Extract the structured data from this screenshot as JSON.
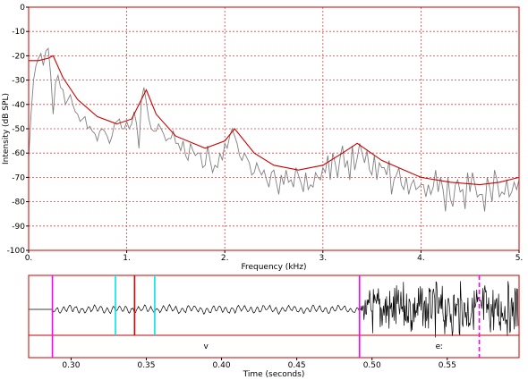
{
  "chart_data": [
    {
      "type": "line",
      "xlabel": "Frequency (kHz)",
      "ylabel": "Intensity (dB SPL)",
      "xlim": [
        0,
        5
      ],
      "ylim": [
        -100,
        0
      ],
      "x_ticks": [
        0,
        1,
        2,
        3,
        4,
        5
      ],
      "x_tick_labels": [
        "0.",
        "1.",
        "2.",
        "3.",
        "4.",
        "5."
      ],
      "y_ticks": [
        0,
        -10,
        -20,
        -30,
        -40,
        -50,
        -60,
        -70,
        -80,
        -90,
        -100
      ],
      "y_tick_labels": [
        "0",
        "-10",
        "-20",
        "-30",
        "-40",
        "-50",
        "-60",
        "-70",
        "-80",
        "-90",
        "-100"
      ],
      "grid": true,
      "series": [
        {
          "role": "LPC spectral envelope",
          "color": "#cc0000",
          "x": [
            0,
            0.1,
            0.2,
            0.25,
            0.35,
            0.5,
            0.7,
            0.9,
            1.05,
            1.15,
            1.2,
            1.3,
            1.5,
            1.8,
            2.0,
            2.1,
            2.3,
            2.5,
            2.75,
            3.0,
            3.2,
            3.35,
            3.6,
            4.0,
            4.3,
            4.6,
            4.8,
            5.0
          ],
          "y": [
            -22,
            -22,
            -21,
            -20,
            -29,
            -38,
            -45,
            -48,
            -46,
            -38,
            -34,
            -44,
            -53,
            -58,
            -55,
            -50,
            -60,
            -65,
            -67,
            -65,
            -60,
            -56,
            -63,
            -70,
            -72,
            -73,
            -72,
            -70
          ]
        },
        {
          "role": "FFT spectrum",
          "color": "#808080",
          "x": [
            0.0,
            0.025,
            0.05,
            0.075,
            0.1,
            0.125,
            0.15,
            0.175,
            0.2,
            0.225,
            0.25,
            0.275,
            0.3,
            0.325,
            0.35,
            0.375,
            0.4,
            0.425,
            0.45,
            0.475,
            0.5,
            0.525,
            0.55,
            0.575,
            0.6,
            0.625,
            0.65,
            0.675,
            0.7,
            0.725,
            0.75,
            0.775,
            0.8,
            0.825,
            0.85,
            0.875,
            0.9,
            0.925,
            0.95,
            0.975,
            1.0,
            1.025,
            1.05,
            1.075,
            1.1,
            1.125,
            1.15,
            1.175,
            1.2,
            1.225,
            1.25,
            1.275,
            1.3,
            1.325,
            1.35,
            1.375,
            1.4,
            1.425,
            1.45,
            1.475,
            1.5,
            1.525,
            1.55,
            1.575,
            1.6,
            1.625,
            1.65,
            1.675,
            1.7,
            1.725,
            1.75,
            1.775,
            1.8,
            1.825,
            1.85,
            1.875,
            1.9,
            1.925,
            1.95,
            1.975,
            2.0,
            2.025,
            2.05,
            2.075,
            2.1,
            2.125,
            2.15,
            2.175,
            2.2,
            2.225,
            2.25,
            2.275,
            2.3,
            2.325,
            2.35,
            2.375,
            2.4,
            2.425,
            2.45,
            2.475,
            2.5,
            2.525,
            2.55,
            2.575,
            2.6,
            2.625,
            2.65,
            2.675,
            2.7,
            2.725,
            2.75,
            2.775,
            2.8,
            2.825,
            2.85,
            2.875,
            2.9,
            2.925,
            2.95,
            2.975,
            3.0,
            3.025,
            3.05,
            3.075,
            3.1,
            3.125,
            3.15,
            3.175,
            3.2,
            3.225,
            3.25,
            3.275,
            3.3,
            3.325,
            3.35,
            3.375,
            3.4,
            3.425,
            3.45,
            3.475,
            3.5,
            3.525,
            3.55,
            3.575,
            3.6,
            3.625,
            3.65,
            3.675,
            3.7,
            3.725,
            3.75,
            3.775,
            3.8,
            3.825,
            3.85,
            3.875,
            3.9,
            3.925,
            3.95,
            3.975,
            4.0,
            4.025,
            4.05,
            4.075,
            4.1,
            4.125,
            4.15,
            4.175,
            4.2,
            4.225,
            4.25,
            4.275,
            4.3,
            4.325,
            4.35,
            4.375,
            4.4,
            4.425,
            4.45,
            4.475,
            4.5,
            4.525,
            4.55,
            4.575,
            4.6,
            4.625,
            4.65,
            4.675,
            4.7,
            4.725,
            4.75,
            4.775,
            4.8,
            4.825,
            4.85,
            4.875,
            4.9,
            4.925,
            4.95,
            4.975,
            5.0
          ],
          "y": [
            -62,
            -44,
            -30,
            -24,
            -21,
            -19,
            -24,
            -18,
            -17,
            -28,
            -44,
            -31,
            -28,
            -33,
            -34,
            -40,
            -38,
            -36,
            -40,
            -43,
            -44,
            -47,
            -46,
            -45,
            -50,
            -49,
            -51,
            -52,
            -55,
            -51,
            -50,
            -51,
            -53,
            -56,
            -53,
            -48,
            -47,
            -46,
            -50,
            -50,
            -47,
            -50,
            -48,
            -43,
            -48,
            -58,
            -38,
            -33,
            -39,
            -46,
            -50,
            -51,
            -51,
            -48,
            -50,
            -52,
            -55,
            -54,
            -54,
            -51,
            -56,
            -56,
            -59,
            -55,
            -61,
            -63,
            -56,
            -59,
            -61,
            -60,
            -60,
            -66,
            -65,
            -57,
            -63,
            -68,
            -65,
            -66,
            -60,
            -63,
            -56,
            -58,
            -53,
            -50,
            -53,
            -56,
            -61,
            -63,
            -60,
            -62,
            -64,
            -69,
            -68,
            -64,
            -67,
            -69,
            -67,
            -71,
            -74,
            -68,
            -67,
            -72,
            -77,
            -69,
            -73,
            -67,
            -72,
            -71,
            -74,
            -66,
            -69,
            -72,
            -76,
            -68,
            -75,
            -73,
            -74,
            -68,
            -70,
            -71,
            -66,
            -68,
            -61,
            -71,
            -60,
            -64,
            -70,
            -62,
            -57,
            -66,
            -63,
            -71,
            -57,
            -67,
            -62,
            -56,
            -60,
            -64,
            -59,
            -67,
            -69,
            -61,
            -71,
            -64,
            -66,
            -66,
            -69,
            -63,
            -77,
            -71,
            -69,
            -66,
            -73,
            -75,
            -70,
            -77,
            -73,
            -71,
            -75,
            -74,
            -73,
            -73,
            -78,
            -73,
            -77,
            -74,
            -67,
            -76,
            -70,
            -75,
            -84,
            -70,
            -79,
            -82,
            -73,
            -71,
            -76,
            -75,
            -83,
            -68,
            -76,
            -68,
            -73,
            -78,
            -77,
            -77,
            -84,
            -70,
            -74,
            -80,
            -67,
            -71,
            -78,
            -76,
            -77,
            -71,
            -78,
            -76,
            -72,
            -75,
            -71
          ]
        }
      ]
    },
    {
      "type": "waveform",
      "xlabel": "Time (seconds)",
      "xlim": [
        0.2718,
        0.5977
      ],
      "x_ticks": [
        0.3,
        0.35,
        0.4,
        0.45,
        0.5,
        0.55
      ],
      "x_tick_labels": [
        "0.30",
        "0.35",
        "0.40",
        "0.45",
        "0.50",
        "0.55"
      ],
      "segments": [
        {
          "label": "v",
          "start": 0.2876,
          "end": 0.4917
        },
        {
          "label": "eː",
          "start": 0.4917,
          "end": 0.5977
        }
      ],
      "markers": [
        {
          "t": 0.2876,
          "color": "#ff00ff",
          "style": "solid"
        },
        {
          "t": 0.3295,
          "color": "#00e5e5",
          "style": "solid"
        },
        {
          "t": 0.3422,
          "color": "#dd0000",
          "style": "solid"
        },
        {
          "t": 0.3556,
          "color": "#00e5e5",
          "style": "solid"
        },
        {
          "t": 0.4917,
          "color": "#ff00ff",
          "style": "solid"
        },
        {
          "t": 0.5713,
          "color": "#ff00ff",
          "style": "dashed"
        }
      ]
    }
  ]
}
